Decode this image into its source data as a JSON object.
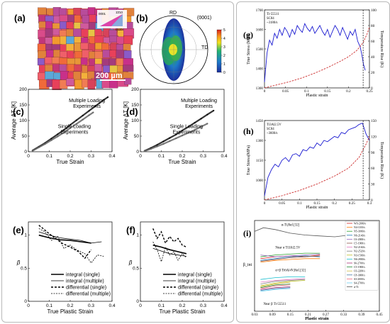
{
  "panels": {
    "a": {
      "label": "(a)",
      "scale_bar": "200 µm",
      "key_labels": [
        "0001",
        "1̄2̄10",
        "011̄0"
      ]
    },
    "b": {
      "label": "(b)",
      "top": "RD",
      "right": "TD",
      "plane": "(0001)",
      "colorbar": {
        "min": 0,
        "max": 5,
        "ticks": [
          "5",
          "4",
          "3",
          "2",
          "1",
          "0"
        ]
      }
    }
  },
  "chart_data": [
    {
      "id": "c",
      "label": "(c)",
      "type": "scatter",
      "xlabel": "True Strain",
      "ylabel": "Average ΔT [K]",
      "xlim": [
        0,
        0.4
      ],
      "ylim": [
        0,
        200
      ],
      "xticks": [
        "0",
        "0.1",
        "0.2",
        "0.3",
        "0.4"
      ],
      "yticks": [
        "0",
        "50",
        "100",
        "150",
        "200"
      ],
      "annotations": [
        "Multiple Loading Experiments",
        "Single Loading Experiments"
      ],
      "series": [
        {
          "color": "#111111",
          "x": [
            0.02,
            0.05,
            0.08,
            0.11,
            0.14,
            0.17,
            0.2,
            0.23,
            0.26,
            0.29,
            0.32,
            0.34,
            0.36,
            0.38
          ],
          "y": [
            4,
            16,
            28,
            42,
            56,
            70,
            86,
            101,
            116,
            131,
            146,
            156,
            166,
            175
          ]
        },
        {
          "color": "#666666",
          "x": [
            0.02,
            0.05,
            0.08,
            0.11,
            0.14,
            0.17,
            0.2,
            0.23,
            0.26,
            0.29,
            0.31
          ],
          "y": [
            3,
            14,
            25,
            37,
            49,
            62,
            76,
            89,
            103,
            117,
            126
          ]
        }
      ]
    },
    {
      "id": "d",
      "label": "(d)",
      "type": "scatter",
      "xlabel": "True Strain",
      "ylabel": "Average ΔT [K]",
      "xlim": [
        0,
        0.4
      ],
      "ylim": [
        0,
        200
      ],
      "xticks": [
        "0",
        "0.1",
        "0.2",
        "0.3",
        "0.4"
      ],
      "yticks": [
        "0",
        "50",
        "100",
        "150",
        "200"
      ],
      "annotations": [
        "Multiple Loading Experiments",
        "Single Loading Experiments"
      ],
      "series": [
        {
          "color": "#111111",
          "x": [
            0.02,
            0.05,
            0.08,
            0.11,
            0.14,
            0.17,
            0.2,
            0.23,
            0.26,
            0.29,
            0.32,
            0.35
          ],
          "y": [
            3,
            12,
            22,
            33,
            44,
            55,
            68,
            80,
            93,
            106,
            119,
            132
          ]
        },
        {
          "color": "#666666",
          "x": [
            0.02,
            0.05,
            0.08,
            0.11,
            0.14,
            0.17,
            0.2,
            0.23,
            0.26,
            0.29,
            0.32
          ],
          "y": [
            2,
            9,
            17,
            25,
            34,
            43,
            52,
            61,
            70,
            80,
            90
          ]
        }
      ]
    },
    {
      "id": "e",
      "label": "(e)",
      "type": "line",
      "xlabel": "True Plastic Strain",
      "ylabel": "β",
      "xlim": [
        0,
        0.4
      ],
      "ylim": [
        0,
        1.2
      ],
      "xticks": [
        "0",
        "0.1",
        "0.2",
        "0.3",
        "0.4"
      ],
      "yticks": [
        "0",
        "0.5",
        "1"
      ],
      "series": [
        {
          "name": "integral (single)",
          "style": "solid-thick",
          "x": [
            0.05,
            0.1,
            0.15,
            0.2,
            0.25,
            0.3
          ],
          "y": [
            1.0,
            0.96,
            0.93,
            0.92,
            0.9,
            0.88
          ]
        },
        {
          "name": "integral (multiple)",
          "style": "solid-thin",
          "x": [
            0.05,
            0.1,
            0.15,
            0.2,
            0.25,
            0.3,
            0.35
          ],
          "y": [
            1.05,
            1.0,
            0.96,
            0.94,
            0.92,
            0.88,
            0.9
          ]
        },
        {
          "name": "differential (single)",
          "style": "dashed-thick",
          "x": [
            0.05,
            0.07,
            0.1,
            0.13,
            0.16,
            0.2,
            0.24,
            0.27,
            0.3
          ],
          "y": [
            1.15,
            1.1,
            1.02,
            0.95,
            0.88,
            0.82,
            0.75,
            0.65,
            0.78
          ]
        },
        {
          "name": "differential (multiple)",
          "style": "dashed-thin",
          "x": [
            0.05,
            0.08,
            0.11,
            0.14,
            0.17,
            0.2,
            0.23,
            0.27,
            0.3,
            0.33,
            0.36
          ],
          "y": [
            1.1,
            1.05,
            0.92,
            0.98,
            0.8,
            0.85,
            0.78,
            0.72,
            0.58,
            0.7,
            0.68
          ]
        }
      ]
    },
    {
      "id": "f",
      "label": "(f)",
      "type": "line",
      "xlabel": "True Plastic Strain",
      "ylabel": "β",
      "xlim": [
        0,
        0.4
      ],
      "ylim": [
        0,
        1.2
      ],
      "xticks": [
        "0",
        "0.1",
        "0.2",
        "0.3",
        "0.4"
      ],
      "yticks": [
        "0",
        "0.5",
        "1"
      ],
      "series": [
        {
          "name": "integral (single)",
          "style": "solid-thick",
          "x": [
            0.06,
            0.1,
            0.14,
            0.18,
            0.22
          ],
          "y": [
            0.85,
            0.82,
            0.78,
            0.75,
            0.72
          ]
        },
        {
          "name": "integral (multiple)",
          "style": "solid-thin",
          "x": [
            0.06,
            0.1,
            0.14,
            0.18,
            0.22
          ],
          "y": [
            0.8,
            0.76,
            0.72,
            0.7,
            0.68
          ]
        },
        {
          "name": "differential (single)",
          "style": "dashed-thick",
          "x": [
            0.06,
            0.08,
            0.1,
            0.12,
            0.14,
            0.16,
            0.18,
            0.2,
            0.22
          ],
          "y": [
            1.1,
            0.95,
            1.05,
            0.88,
            0.98,
            0.9,
            0.95,
            0.85,
            0.82
          ]
        },
        {
          "name": "differential (multiple)",
          "style": "dashed-thin",
          "x": [
            0.06,
            0.08,
            0.1,
            0.12,
            0.14,
            0.16,
            0.18,
            0.2,
            0.22
          ],
          "y": [
            0.9,
            0.78,
            0.6,
            0.82,
            0.7,
            0.75,
            0.62,
            0.72,
            0.66
          ]
        }
      ]
    },
    {
      "id": "g",
      "label": "(g)",
      "type": "line",
      "xlabel": "Plastic strain",
      "ylabel": "True Stress (MPa)",
      "y2label": "Temperature Rise (K)",
      "xlim": [
        0,
        0.25
      ],
      "ylim": [
        1300,
        1700
      ],
      "y2lim": [
        0,
        100
      ],
      "xticks": [
        "0",
        "0.05",
        "0.1",
        "0.15",
        "0.2",
        "0.25"
      ],
      "yticks": [
        "1300",
        "1400",
        "1500",
        "1600",
        "1700"
      ],
      "y2ticks": [
        "0",
        "20",
        "40",
        "60",
        "80",
        "100"
      ],
      "annotations": [
        "Ti-55511",
        "SC84",
        "~3180/s"
      ],
      "series": [
        {
          "color": "#1a1ad1",
          "x": [
            0,
            0.006,
            0.012,
            0.018,
            0.024,
            0.03,
            0.036,
            0.042,
            0.048,
            0.054,
            0.06,
            0.066,
            0.072,
            0.078,
            0.084,
            0.09,
            0.096,
            0.102,
            0.108,
            0.114,
            0.12,
            0.126,
            0.132,
            0.138,
            0.144,
            0.15,
            0.156,
            0.162,
            0.168,
            0.174,
            0.18,
            0.186,
            0.192,
            0.198,
            0.204,
            0.21,
            0.216,
            0.222,
            0.228,
            0.232,
            0.236,
            0.24
          ],
          "y": [
            1330,
            1480,
            1545,
            1520,
            1580,
            1555,
            1600,
            1570,
            1610,
            1590,
            1560,
            1600,
            1575,
            1620,
            1600,
            1585,
            1630,
            1605,
            1590,
            1615,
            1580,
            1600,
            1620,
            1590,
            1570,
            1600,
            1560,
            1590,
            1620,
            1600,
            1570,
            1610,
            1580,
            1550,
            1590,
            1570,
            1600,
            1540,
            1510,
            1470,
            1420,
            1390
          ]
        },
        {
          "color": "#cc2b2b",
          "x": [
            0,
            0.03,
            0.06,
            0.09,
            0.12,
            0.15,
            0.18,
            0.2,
            0.22,
            0.235,
            0.245,
            0.25
          ],
          "y2": [
            0,
            4,
            8,
            13,
            19,
            26,
            34,
            40,
            48,
            58,
            70,
            78
          ]
        }
      ]
    },
    {
      "id": "h",
      "label": "(h)",
      "type": "line",
      "xlabel": "Plastic strain",
      "ylabel": "True Stress(MPa)",
      "y2label": "Temperature Rise (K)",
      "xlim": [
        0,
        0.3
      ],
      "ylim": [
        850,
        1450
      ],
      "y2lim": [
        0,
        150
      ],
      "xticks": [
        "0",
        "0.05",
        "0.1",
        "0.15",
        "0.2",
        "0.25",
        "0.3"
      ],
      "yticks": [
        "1000",
        "1150",
        "1300",
        "1450"
      ],
      "y2ticks": [
        "0",
        "30",
        "60",
        "90",
        "120",
        "150"
      ],
      "annotations": [
        "Ti3Al2.5V",
        "SC84",
        "~3600/s"
      ],
      "series": [
        {
          "color": "#1a1ad1",
          "x": [
            0,
            0.01,
            0.02,
            0.03,
            0.04,
            0.05,
            0.06,
            0.07,
            0.08,
            0.09,
            0.1,
            0.11,
            0.12,
            0.13,
            0.14,
            0.15,
            0.16,
            0.17,
            0.18,
            0.19,
            0.2,
            0.21,
            0.22,
            0.23,
            0.24,
            0.25,
            0.26,
            0.27,
            0.28,
            0.29,
            0.3
          ],
          "y": [
            880,
            1020,
            1080,
            1120,
            1100,
            1150,
            1170,
            1140,
            1190,
            1200,
            1180,
            1230,
            1220,
            1250,
            1240,
            1280,
            1260,
            1300,
            1290,
            1310,
            1330,
            1320,
            1360,
            1350,
            1380,
            1390,
            1400,
            1420,
            1430,
            1350,
            1300
          ]
        },
        {
          "color": "#cc2b2b",
          "x": [
            0,
            0.05,
            0.1,
            0.15,
            0.2,
            0.24,
            0.27,
            0.29,
            0.3
          ],
          "y2": [
            0,
            8,
            18,
            30,
            45,
            60,
            80,
            105,
            120
          ]
        }
      ]
    },
    {
      "id": "i",
      "label": "(i)",
      "type": "line",
      "xlabel": "Plastic strain",
      "ylabel": "β_int",
      "xlim": [
        0.03,
        0.45
      ],
      "ylim": [
        0.0,
        1.0
      ],
      "xticks": [
        "0.03",
        "0.09",
        "0.15",
        "0.21",
        "0.27",
        "0.33",
        "0.39",
        "0.45"
      ],
      "annotations": [
        "α-Ti,Ref.[32]",
        "Near α Ti3Al2.5V",
        "α+β Ti6Al4V,Ref.[32]",
        "Near β Ti-55511"
      ],
      "legend_placement": "right",
      "series": [
        {
          "name": "WS-2000/s",
          "color": "#d62728",
          "x": [
            0.05,
            0.1,
            0.15,
            0.2,
            0.25
          ],
          "y": [
            0.58,
            0.6,
            0.61,
            0.6,
            0.62
          ]
        },
        {
          "name": "N4-1100/s",
          "color": "#ff7f0e",
          "x": [
            0.05,
            0.1,
            0.15,
            0.2,
            0.25
          ],
          "y": [
            0.54,
            0.56,
            0.57,
            0.58,
            0.58
          ]
        },
        {
          "name": "N5-3000/s",
          "color": "#2ca02c",
          "x": [
            0.05,
            0.1,
            0.15,
            0.2,
            0.25
          ],
          "y": [
            0.6,
            0.62,
            0.63,
            0.64,
            0.64
          ]
        },
        {
          "name": "N6-2140/s",
          "color": "#1f77b4",
          "x": [
            0.05,
            0.1,
            0.15,
            0.2,
            0.25
          ],
          "y": [
            0.56,
            0.58,
            0.6,
            0.61,
            0.6
          ]
        },
        {
          "name": "C6-2000/s",
          "color": "#9467bd",
          "x": [
            0.05,
            0.1,
            0.15,
            0.2,
            0.25
          ],
          "y": [
            0.62,
            0.6,
            0.61,
            0.62,
            0.63
          ]
        },
        {
          "name": "C5-1900/s",
          "color": "#8c564b",
          "x": [
            0.05,
            0.1,
            0.15,
            0.2,
            0.25
          ],
          "y": [
            0.55,
            0.57,
            0.59,
            0.6,
            0.61
          ]
        },
        {
          "name": "N2-2160/s",
          "color": "#e377c2",
          "x": [
            0.05,
            0.1,
            0.15,
            0.2
          ],
          "y": [
            0.32,
            0.34,
            0.35,
            0.36
          ]
        },
        {
          "name": "N2-2520/s",
          "color": "#7f7f7f",
          "x": [
            0.05,
            0.1,
            0.15,
            0.2
          ],
          "y": [
            0.3,
            0.33,
            0.34,
            0.35
          ]
        },
        {
          "name": "N3-1500/s",
          "color": "#bcbd22",
          "x": [
            0.05,
            0.1,
            0.15,
            0.2
          ],
          "y": [
            0.28,
            0.31,
            0.33,
            0.34
          ]
        },
        {
          "name": "N6-2800/s",
          "color": "#17becf",
          "x": [
            0.05,
            0.1,
            0.15,
            0.2
          ],
          "y": [
            0.35,
            0.37,
            0.38,
            0.38
          ]
        },
        {
          "name": "S6-2700/s",
          "color": "#aa3377",
          "x": [
            0.05,
            0.1,
            0.15
          ],
          "y": [
            0.24,
            0.26,
            0.27
          ]
        },
        {
          "name": "C5-1900/s",
          "color": "#228833",
          "x": [
            0.05,
            0.1,
            0.15
          ],
          "y": [
            0.26,
            0.29,
            0.3
          ]
        },
        {
          "name": "C6-2200/s",
          "color": "#ccbb44",
          "x": [
            0.05,
            0.1,
            0.15
          ],
          "y": [
            0.27,
            0.3,
            0.32
          ]
        },
        {
          "name": "C8-3000/s",
          "color": "#4477aa",
          "x": [
            0.05,
            0.1,
            0.15
          ],
          "y": [
            0.23,
            0.25,
            0.26
          ]
        },
        {
          "name": "S3-2000/s",
          "color": "#ee6677",
          "x": [
            0.05,
            0.1,
            0.15
          ],
          "y": [
            0.25,
            0.28,
            0.29
          ]
        },
        {
          "name": "S4-2700/s",
          "color": "#66ccee",
          "x": [
            0.05,
            0.1,
            0.15
          ],
          "y": [
            0.22,
            0.24,
            0.25
          ]
        },
        {
          "name": "α-Ti",
          "color": "#555555",
          "x": [
            0.03,
            0.06,
            0.1,
            0.15,
            0.2,
            0.25,
            0.3,
            0.35,
            0.39
          ],
          "y": [
            0.88,
            0.92,
            0.9,
            0.86,
            0.84,
            0.83,
            0.82,
            0.84,
            0.86
          ]
        }
      ]
    }
  ]
}
